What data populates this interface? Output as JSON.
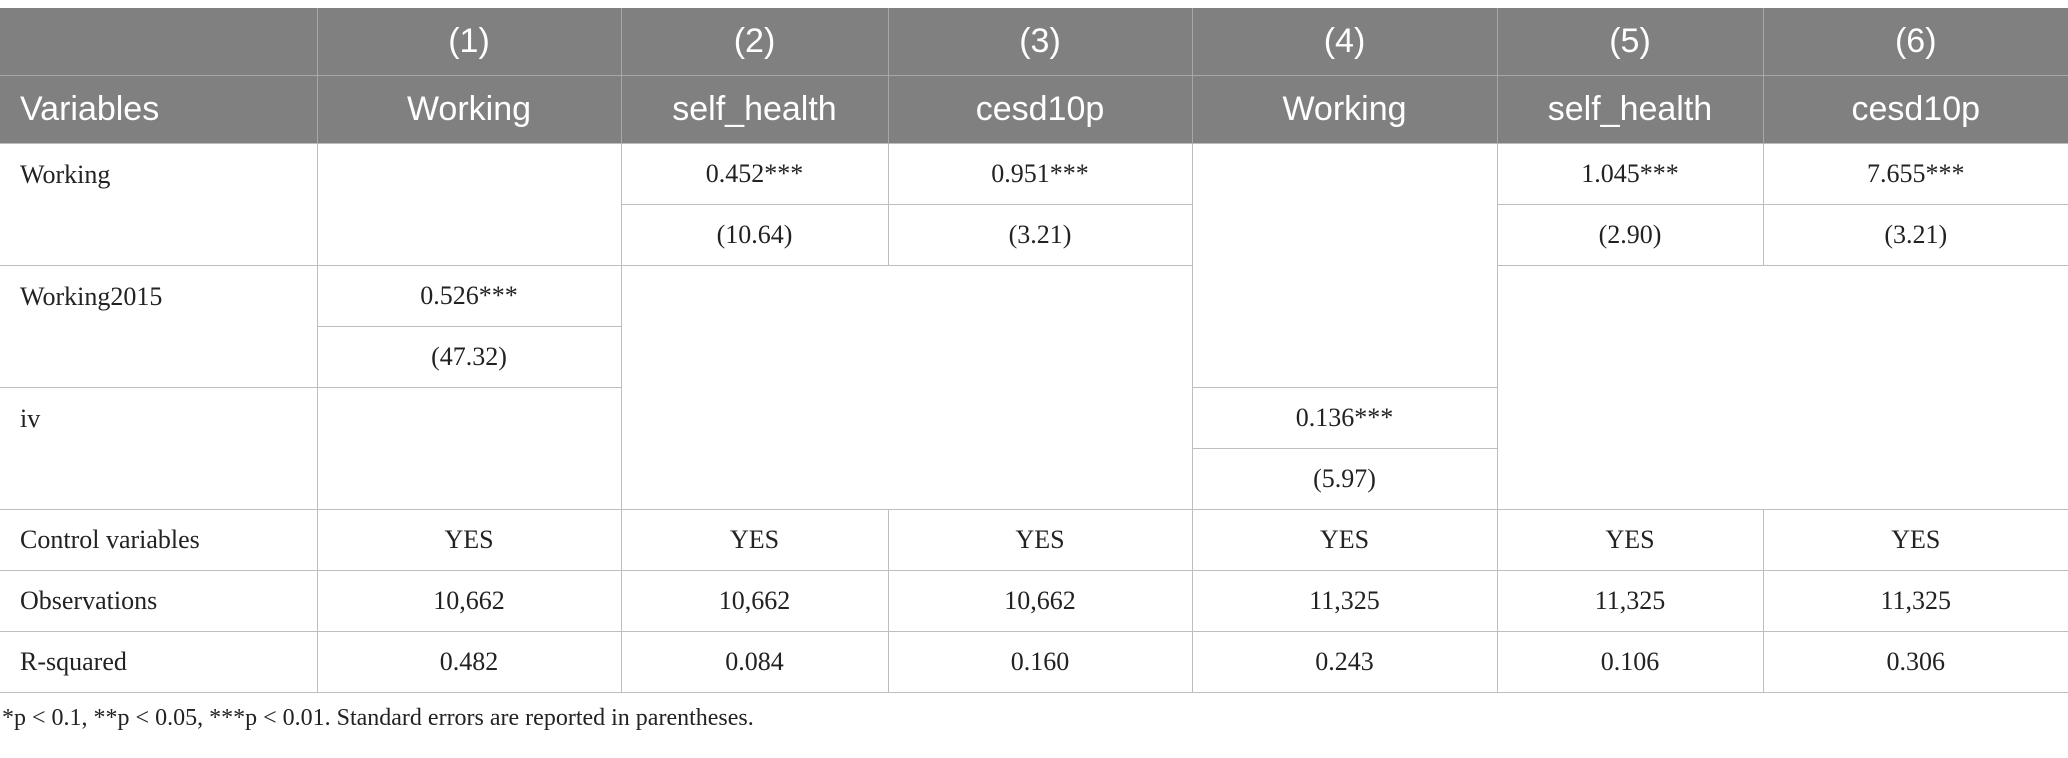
{
  "table": {
    "header": [
      [
        "(1)",
        "(2)",
        "(3)",
        "(4)",
        "(5)",
        "(6)"
      ],
      [
        "Variables",
        "Working",
        "self_health",
        "cesd10p",
        "Working",
        "self_health",
        "cesd10p"
      ]
    ],
    "rows": {
      "working": {
        "label": "Working",
        "coef": [
          "0.452***",
          "0.951***",
          "1.045***",
          "7.655***"
        ],
        "se": [
          "(10.64)",
          "(3.21)",
          "(2.90)",
          "(3.21)"
        ]
      },
      "working2015": {
        "label": "Working2015",
        "coef": "0.526***",
        "se": "(47.32)"
      },
      "iv": {
        "label": "iv",
        "coef": "0.136***",
        "se": "(5.97)"
      },
      "stats": [
        [
          "Control variables",
          "YES",
          "YES",
          "YES",
          "YES",
          "YES",
          "YES"
        ],
        [
          "Observations",
          "10,662",
          "10,662",
          "10,662",
          "11,325",
          "11,325",
          "11,325"
        ],
        [
          "R-squared",
          "0.482",
          "0.084",
          "0.160",
          "0.243",
          "0.106",
          "0.306"
        ]
      ]
    },
    "footnote": "*p < 0.1, **p < 0.05, ***p < 0.01. Standard errors are reported in parentheses."
  }
}
